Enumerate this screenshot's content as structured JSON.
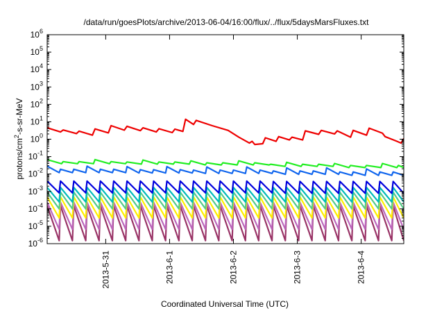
{
  "chart_data": {
    "type": "line",
    "title": "/data/run/goesPlots/archive/2013-06-04/16:00/flux/../flux/5daysMarsFluxes.txt",
    "xlabel": "Coordinated Universal Time (UTC)",
    "ylabel_parts": [
      "protons/cm",
      "2",
      "-s-sr-MeV"
    ],
    "y_scale": "log",
    "ylim": [
      1e-06,
      1000000.0
    ],
    "y_ticks": [
      {
        "base": "10",
        "exp": "-6",
        "value": 1e-06
      },
      {
        "base": "10",
        "exp": "-5",
        "value": 1e-05
      },
      {
        "base": "10",
        "exp": "-4",
        "value": 0.0001
      },
      {
        "base": "10",
        "exp": "-3",
        "value": 0.001
      },
      {
        "base": "10",
        "exp": "-2",
        "value": 0.01
      },
      {
        "base": "10",
        "exp": "-1",
        "value": 0.1
      },
      {
        "base": "10",
        "exp": "0",
        "value": 1
      },
      {
        "base": "10",
        "exp": "1",
        "value": 10
      },
      {
        "base": "10",
        "exp": "2",
        "value": 100
      },
      {
        "base": "10",
        "exp": "3",
        "value": 1000
      },
      {
        "base": "10",
        "exp": "4",
        "value": 10000
      },
      {
        "base": "10",
        "exp": "5",
        "value": 100000
      },
      {
        "base": "10",
        "exp": "6",
        "value": 1000000
      }
    ],
    "xlim": [
      "2013-05-30T02:00",
      "2013-06-04T16:00"
    ],
    "x_ticks": [
      {
        "label": "2013-5-31",
        "value": "2013-05-31T00:00"
      },
      {
        "label": "2013-6-1",
        "value": "2013-06-01T00:00"
      },
      {
        "label": "2013-6-2",
        "value": "2013-06-02T00:00"
      },
      {
        "label": "2013-6-3",
        "value": "2013-06-03T00:00"
      },
      {
        "label": "2013-6-4",
        "value": "2013-06-04T00:00"
      }
    ],
    "grid": false,
    "legend": "none",
    "series": [
      {
        "color": "#ee0000",
        "points": [
          [
            "2013-05-30T02:00",
            4.5
          ],
          [
            "2013-05-30T07:00",
            2.6
          ],
          [
            "2013-05-30T08:00",
            3.4
          ],
          [
            "2013-05-30T13:00",
            2.1
          ],
          [
            "2013-05-30T14:00",
            2.9
          ],
          [
            "2013-05-30T19:00",
            1.7
          ],
          [
            "2013-05-30T20:00",
            3.9
          ],
          [
            "2013-05-31T01:00",
            2.3
          ],
          [
            "2013-05-31T02:00",
            6.0
          ],
          [
            "2013-05-31T07:00",
            3.3
          ],
          [
            "2013-05-31T08:00",
            5.5
          ],
          [
            "2013-05-31T13:00",
            3.1
          ],
          [
            "2013-05-31T14:00",
            4.5
          ],
          [
            "2013-05-31T19:00",
            2.6
          ],
          [
            "2013-05-31T20:00",
            4.0
          ],
          [
            "2013-06-01T01:00",
            2.4
          ],
          [
            "2013-06-01T02:00",
            3.8
          ],
          [
            "2013-06-01T05:00",
            2.8
          ],
          [
            "2013-06-01T06:00",
            14
          ],
          [
            "2013-06-01T09:00",
            7
          ],
          [
            "2013-06-01T10:00",
            12
          ],
          [
            "2013-06-01T16:00",
            6
          ],
          [
            "2013-06-01T22:00",
            3.2
          ],
          [
            "2013-06-02T02:00",
            1.3
          ],
          [
            "2013-06-02T06:00",
            0.6
          ],
          [
            "2013-06-02T07:00",
            0.75
          ],
          [
            "2013-06-02T08:00",
            0.5
          ],
          [
            "2013-06-02T11:00",
            0.55
          ],
          [
            "2013-06-02T12:00",
            1.2
          ],
          [
            "2013-06-02T16:00",
            0.75
          ],
          [
            "2013-06-02T17:00",
            1.4
          ],
          [
            "2013-06-02T21:00",
            0.9
          ],
          [
            "2013-06-02T22:00",
            1.3
          ],
          [
            "2013-06-03T02:00",
            0.9
          ],
          [
            "2013-06-03T03:00",
            3.0
          ],
          [
            "2013-06-03T08:00",
            1.9
          ],
          [
            "2013-06-03T09:00",
            3.2
          ],
          [
            "2013-06-03T14:00",
            2.0
          ],
          [
            "2013-06-03T15:00",
            3.0
          ],
          [
            "2013-06-03T20:00",
            1.3
          ],
          [
            "2013-06-03T21:00",
            3.2
          ],
          [
            "2013-06-04T02:00",
            1.7
          ],
          [
            "2013-06-04T03:00",
            4.3
          ],
          [
            "2013-06-04T08:00",
            2.2
          ],
          [
            "2013-06-04T09:00",
            1.4
          ],
          [
            "2013-06-04T13:00",
            0.8
          ],
          [
            "2013-06-04T15:00",
            0.6
          ],
          [
            "2013-06-04T16:00",
            1.1
          ]
        ]
      },
      {
        "color": "#22ee22",
        "base": 0.045,
        "amp": 1.15,
        "spike": 1.3,
        "period_h": 6,
        "trend": [
          1.0,
          0.95,
          0.85,
          0.7,
          0.6
        ]
      },
      {
        "color": "#1166ee",
        "base": 0.015,
        "amp": 1.25,
        "spike": 1.5,
        "period_h": 5,
        "trend": [
          1.0,
          0.95,
          0.9,
          0.8,
          0.7
        ]
      },
      {
        "color": "#0000dd",
        "base": 0.0018,
        "amp": 2.2,
        "spike": 1.0,
        "period_h": 5,
        "trend": [
          1.0,
          1.0,
          1.0,
          0.95,
          0.95
        ]
      },
      {
        "color": "#00bbbb",
        "base": 0.00065,
        "amp": 2.6,
        "spike": 1.0,
        "period_h": 5,
        "trend": [
          1.0,
          1.0,
          1.0,
          1.0,
          1.0
        ]
      },
      {
        "color": "#55cc88",
        "base": 0.0003,
        "amp": 3.0,
        "spike": 1.0,
        "period_h": 5,
        "trend": [
          1.0,
          1.0,
          1.0,
          1.0,
          1.0
        ]
      },
      {
        "color": "#ffee00",
        "base": 0.00012,
        "amp": 4.0,
        "spike": 1.0,
        "period_h": 5,
        "trend": [
          1.0,
          1.0,
          1.0,
          1.0,
          1.0
        ]
      },
      {
        "color": "#bb66bb",
        "base": 4e-05,
        "amp": 6.0,
        "spike": 1.0,
        "period_h": 5,
        "trend": [
          1.0,
          1.0,
          1.0,
          1.0,
          1.0
        ]
      },
      {
        "color": "#993366",
        "base": 1.5e-05,
        "amp": 10.0,
        "spike": 1.0,
        "period_h": 5,
        "trend": [
          1.0,
          1.0,
          1.0,
          1.0,
          1.0
        ]
      }
    ]
  }
}
